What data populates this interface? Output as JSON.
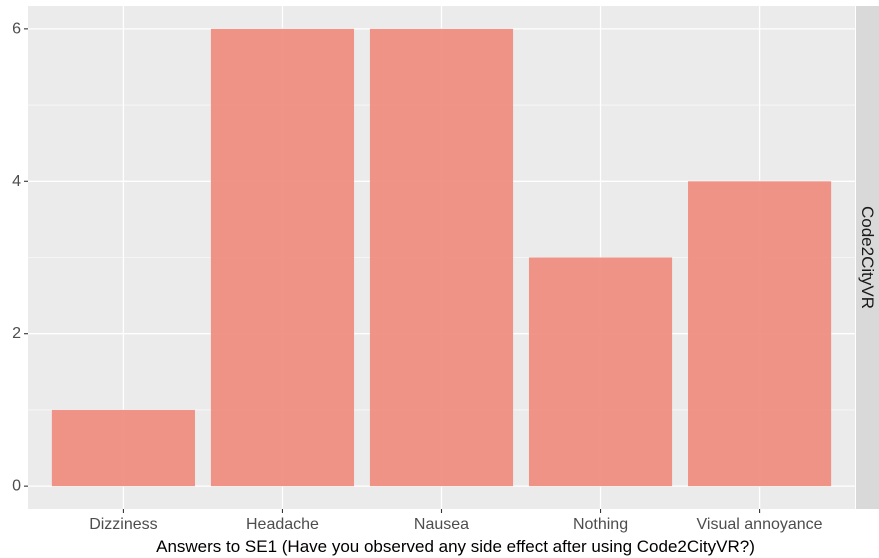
{
  "chart_data": {
    "type": "bar",
    "categories": [
      "Dizziness",
      "Headache",
      "Nausea",
      "Nothing",
      "Visual annoyance"
    ],
    "values": [
      1,
      6,
      6,
      3,
      4
    ],
    "xlabel": "Answers to SE1 (Have you observed any side effect after using Code2CityVR?)",
    "ylabel": "",
    "ylim": [
      -0.3,
      6.3
    ],
    "yticks": [
      0,
      2,
      4,
      6
    ],
    "ytick_labels": [
      "0",
      "2",
      "4",
      "6"
    ],
    "facet_label": "Code2CityVR",
    "grid": true,
    "legend": "none",
    "colors": {
      "bar": "#F08E82",
      "panel_background": "#EBEBEB",
      "grid_major": "#FFFFFF",
      "strip_background": "#D9D9D9"
    }
  }
}
